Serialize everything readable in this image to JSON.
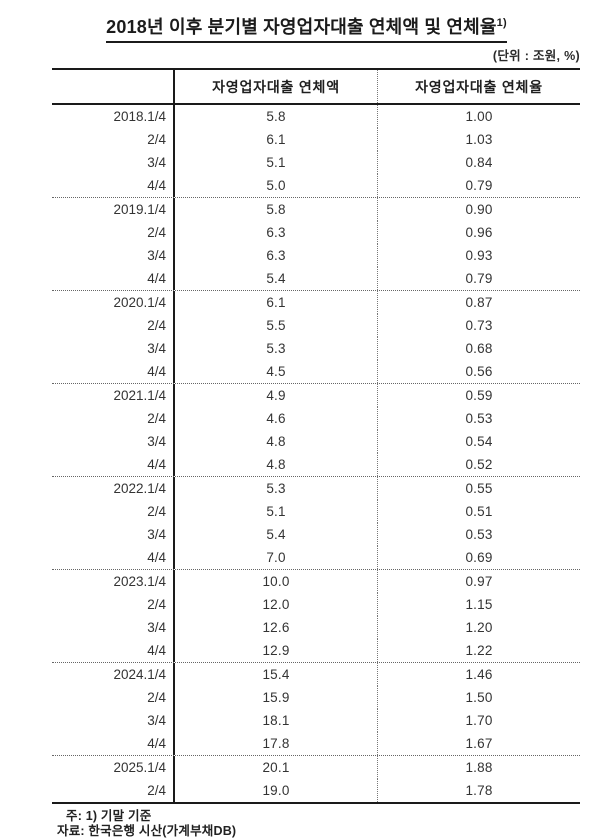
{
  "title": {
    "text": "2018년 이후 분기별 자영업자대출 연체액 및 연체율",
    "superscript": "1)"
  },
  "unit_note": "(단위 : 조원, %)",
  "table": {
    "col_headers": [
      "자영업자대출 연체액",
      "자영업자대출 연체율"
    ],
    "groups": [
      {
        "year": "2018",
        "rows": [
          {
            "label": "2018.1/4",
            "amount": "5.8",
            "rate": "1.00"
          },
          {
            "label": "2/4",
            "amount": "6.1",
            "rate": "1.03"
          },
          {
            "label": "3/4",
            "amount": "5.1",
            "rate": "0.84"
          },
          {
            "label": "4/4",
            "amount": "5.0",
            "rate": "0.79"
          }
        ]
      },
      {
        "year": "2019",
        "rows": [
          {
            "label": "2019.1/4",
            "amount": "5.8",
            "rate": "0.90"
          },
          {
            "label": "2/4",
            "amount": "6.3",
            "rate": "0.96"
          },
          {
            "label": "3/4",
            "amount": "6.3",
            "rate": "0.93"
          },
          {
            "label": "4/4",
            "amount": "5.4",
            "rate": "0.79"
          }
        ]
      },
      {
        "year": "2020",
        "rows": [
          {
            "label": "2020.1/4",
            "amount": "6.1",
            "rate": "0.87"
          },
          {
            "label": "2/4",
            "amount": "5.5",
            "rate": "0.73"
          },
          {
            "label": "3/4",
            "amount": "5.3",
            "rate": "0.68"
          },
          {
            "label": "4/4",
            "amount": "4.5",
            "rate": "0.56"
          }
        ]
      },
      {
        "year": "2021",
        "rows": [
          {
            "label": "2021.1/4",
            "amount": "4.9",
            "rate": "0.59"
          },
          {
            "label": "2/4",
            "amount": "4.6",
            "rate": "0.53"
          },
          {
            "label": "3/4",
            "amount": "4.8",
            "rate": "0.54"
          },
          {
            "label": "4/4",
            "amount": "4.8",
            "rate": "0.52"
          }
        ]
      },
      {
        "year": "2022",
        "rows": [
          {
            "label": "2022.1/4",
            "amount": "5.3",
            "rate": "0.55"
          },
          {
            "label": "2/4",
            "amount": "5.1",
            "rate": "0.51"
          },
          {
            "label": "3/4",
            "amount": "5.4",
            "rate": "0.53"
          },
          {
            "label": "4/4",
            "amount": "7.0",
            "rate": "0.69"
          }
        ]
      },
      {
        "year": "2023",
        "rows": [
          {
            "label": "2023.1/4",
            "amount": "10.0",
            "rate": "0.97"
          },
          {
            "label": "2/4",
            "amount": "12.0",
            "rate": "1.15"
          },
          {
            "label": "3/4",
            "amount": "12.6",
            "rate": "1.20"
          },
          {
            "label": "4/4",
            "amount": "12.9",
            "rate": "1.22"
          }
        ]
      },
      {
        "year": "2024",
        "rows": [
          {
            "label": "2024.1/4",
            "amount": "15.4",
            "rate": "1.46"
          },
          {
            "label": "2/4",
            "amount": "15.9",
            "rate": "1.50"
          },
          {
            "label": "3/4",
            "amount": "18.1",
            "rate": "1.70"
          },
          {
            "label": "4/4",
            "amount": "17.8",
            "rate": "1.67"
          }
        ]
      },
      {
        "year": "2025",
        "rows": [
          {
            "label": "2025.1/4",
            "amount": "20.1",
            "rate": "1.88"
          },
          {
            "label": "2/4",
            "amount": "19.0",
            "rate": "1.78"
          }
        ]
      }
    ]
  },
  "footnotes": [
    "주: 1) 기말 기준",
    "자료: 한국은행 시산(가계부채DB)"
  ],
  "chart_data": {
    "type": "table",
    "title": "2018년 이후 분기별 자영업자대출 연체액 및 연체율 1)",
    "unit": "조원, %",
    "categories": [
      "2018.1/4",
      "2018.2/4",
      "2018.3/4",
      "2018.4/4",
      "2019.1/4",
      "2019.2/4",
      "2019.3/4",
      "2019.4/4",
      "2020.1/4",
      "2020.2/4",
      "2020.3/4",
      "2020.4/4",
      "2021.1/4",
      "2021.2/4",
      "2021.3/4",
      "2021.4/4",
      "2022.1/4",
      "2022.2/4",
      "2022.3/4",
      "2022.4/4",
      "2023.1/4",
      "2023.2/4",
      "2023.3/4",
      "2023.4/4",
      "2024.1/4",
      "2024.2/4",
      "2024.3/4",
      "2024.4/4",
      "2025.1/4",
      "2025.2/4"
    ],
    "series": [
      {
        "name": "자영업자대출 연체액",
        "values": [
          5.8,
          6.1,
          5.1,
          5.0,
          5.8,
          6.3,
          6.3,
          5.4,
          6.1,
          5.5,
          5.3,
          4.5,
          4.9,
          4.6,
          4.8,
          4.8,
          5.3,
          5.1,
          5.4,
          7.0,
          10.0,
          12.0,
          12.6,
          12.9,
          15.4,
          15.9,
          18.1,
          17.8,
          20.1,
          19.0
        ]
      },
      {
        "name": "자영업자대출 연체율",
        "values": [
          1.0,
          1.03,
          0.84,
          0.79,
          0.9,
          0.96,
          0.93,
          0.79,
          0.87,
          0.73,
          0.68,
          0.56,
          0.59,
          0.53,
          0.54,
          0.52,
          0.55,
          0.51,
          0.53,
          0.69,
          0.97,
          1.15,
          1.2,
          1.22,
          1.46,
          1.5,
          1.7,
          1.67,
          1.88,
          1.78
        ]
      }
    ],
    "notes": [
      "1) 기말 기준"
    ],
    "source": "한국은행 시산(가계부채DB)"
  }
}
